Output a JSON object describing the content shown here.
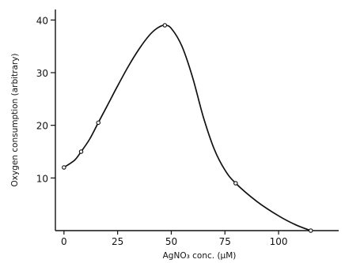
{
  "chart_data": {
    "type": "line",
    "title": "",
    "xlabel": "AgNO₃ conc. (µM)",
    "ylabel": "Oxygen consumption (arbitrary)",
    "xlim": [
      -4,
      128
    ],
    "ylim": [
      0,
      42
    ],
    "xticks": [
      0,
      25,
      50,
      75,
      100
    ],
    "xtick_labels": [
      "0",
      "25",
      "50",
      "75",
      "100"
    ],
    "yticks": [
      10,
      20,
      30,
      40
    ],
    "ytick_labels": [
      "10",
      "20",
      "30",
      "40"
    ],
    "grid": false,
    "legend": "none",
    "series": [
      {
        "points": [
          {
            "x": 0,
            "y": 12
          },
          {
            "x": 8,
            "y": 15
          },
          {
            "x": 16,
            "y": 20.5
          },
          {
            "x": 47,
            "y": 39
          },
          {
            "x": 80,
            "y": 9
          },
          {
            "x": 115,
            "y": 0
          }
        ],
        "curve": [
          [
            0,
            12
          ],
          [
            5,
            13.4
          ],
          [
            8,
            15
          ],
          [
            12,
            17.4
          ],
          [
            16,
            20.5
          ],
          [
            20,
            23.6
          ],
          [
            25,
            27.5
          ],
          [
            30,
            31.2
          ],
          [
            35,
            34.5
          ],
          [
            40,
            37.2
          ],
          [
            44,
            38.6
          ],
          [
            47,
            39
          ],
          [
            50,
            38.4
          ],
          [
            55,
            35
          ],
          [
            60,
            29
          ],
          [
            65,
            21.5
          ],
          [
            70,
            15.5
          ],
          [
            75,
            11.5
          ],
          [
            80,
            9
          ],
          [
            90,
            5.5
          ],
          [
            100,
            2.8
          ],
          [
            108,
            1.1
          ],
          [
            115,
            0
          ]
        ]
      }
    ]
  }
}
